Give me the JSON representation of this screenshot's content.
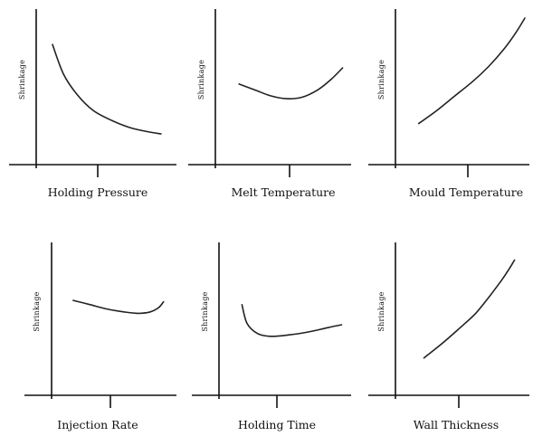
{
  "chart_data": [
    {
      "type": "line",
      "xlabel": "Holding Pressure",
      "ylabel": "Shrinkage",
      "series": [
        {
          "values": [
            [
              0.12,
              0.82
            ],
            [
              0.2,
              0.62
            ],
            [
              0.3,
              0.48
            ],
            [
              0.42,
              0.37
            ],
            [
              0.56,
              0.3
            ],
            [
              0.7,
              0.25
            ],
            [
              0.85,
              0.22
            ],
            [
              0.92,
              0.21
            ]
          ]
        }
      ]
    },
    {
      "type": "line",
      "xlabel": "Melt Temperature",
      "ylabel": "Shrinkage",
      "series": [
        {
          "values": [
            [
              0.18,
              0.55
            ],
            [
              0.3,
              0.51
            ],
            [
              0.42,
              0.47
            ],
            [
              0.54,
              0.45
            ],
            [
              0.66,
              0.46
            ],
            [
              0.78,
              0.51
            ],
            [
              0.88,
              0.58
            ],
            [
              0.97,
              0.66
            ]
          ]
        }
      ]
    },
    {
      "type": "line",
      "xlabel": "Mould Temperature",
      "ylabel": "Shrinkage",
      "series": [
        {
          "values": [
            [
              0.18,
              0.28
            ],
            [
              0.32,
              0.37
            ],
            [
              0.46,
              0.47
            ],
            [
              0.6,
              0.57
            ],
            [
              0.72,
              0.67
            ],
            [
              0.84,
              0.79
            ],
            [
              0.93,
              0.9
            ],
            [
              1.0,
              1.0
            ]
          ]
        }
      ]
    },
    {
      "type": "line",
      "xlabel": "Injection Rate",
      "ylabel": "Shrinkage",
      "series": [
        {
          "values": [
            [
              0.18,
              0.66
            ],
            [
              0.32,
              0.63
            ],
            [
              0.46,
              0.6
            ],
            [
              0.6,
              0.58
            ],
            [
              0.72,
              0.57
            ],
            [
              0.82,
              0.58
            ],
            [
              0.89,
              0.61
            ],
            [
              0.93,
              0.65
            ]
          ]
        }
      ]
    },
    {
      "type": "line",
      "xlabel": "Holding Time",
      "ylabel": "Shrinkage",
      "series": [
        {
          "values": [
            [
              0.18,
              0.63
            ],
            [
              0.22,
              0.5
            ],
            [
              0.3,
              0.43
            ],
            [
              0.4,
              0.41
            ],
            [
              0.55,
              0.42
            ],
            [
              0.7,
              0.44
            ],
            [
              0.85,
              0.47
            ],
            [
              0.96,
              0.49
            ]
          ]
        }
      ]
    },
    {
      "type": "line",
      "xlabel": "Wall Thickness",
      "ylabel": "Shrinkage",
      "series": [
        {
          "values": [
            [
              0.22,
              0.26
            ],
            [
              0.36,
              0.36
            ],
            [
              0.5,
              0.47
            ],
            [
              0.62,
              0.57
            ],
            [
              0.72,
              0.68
            ],
            [
              0.82,
              0.8
            ],
            [
              0.88,
              0.88
            ],
            [
              0.92,
              0.94
            ]
          ]
        }
      ]
    }
  ]
}
